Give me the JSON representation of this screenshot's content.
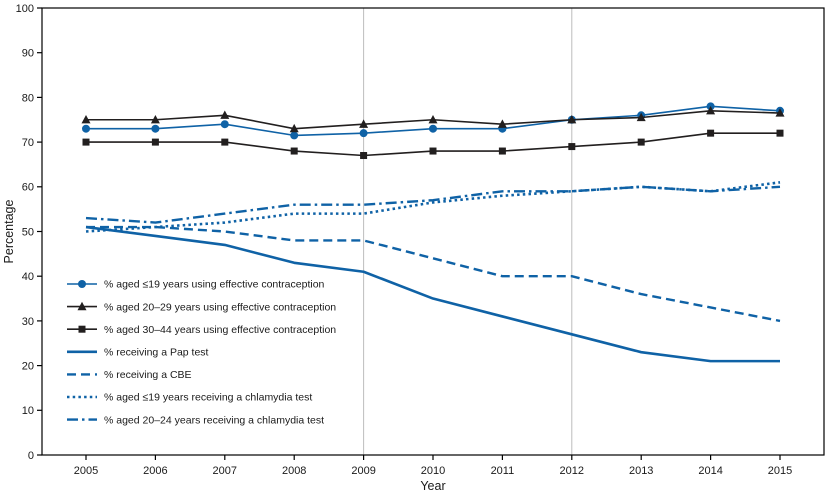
{
  "chart_data": {
    "type": "line",
    "title": "",
    "xlabel": "Year",
    "ylabel": "Percentage",
    "x": [
      2005,
      2006,
      2007,
      2008,
      2009,
      2010,
      2011,
      2012,
      2013,
      2014,
      2015
    ],
    "ylim": [
      0,
      100
    ],
    "ytick_step": 10,
    "grid": "off",
    "ref_lines_x": [
      2009,
      2012
    ],
    "legend_position": "inside lower-left",
    "colors": {
      "blue": "#0f62a6",
      "black": "#221f1f",
      "ref_line": "#bdbdbd",
      "axis": "#000000"
    },
    "series": [
      {
        "name": "% aged ≤19 years using effective contraception",
        "color_key": "blue",
        "line": "solid",
        "marker": "circle",
        "width": 1.6,
        "values": [
          73,
          73,
          74,
          71.5,
          72,
          73,
          73,
          75,
          76,
          78,
          77
        ]
      },
      {
        "name": "% aged 20–29  years using effective contraception",
        "color_key": "black",
        "line": "solid",
        "marker": "triangle",
        "width": 1.6,
        "values": [
          75,
          75,
          76,
          73,
          74,
          75,
          74,
          75,
          75.5,
          77,
          76.5
        ]
      },
      {
        "name": "% aged 30–44  years using effective contraception",
        "color_key": "black",
        "line": "solid",
        "marker": "square",
        "width": 1.6,
        "values": [
          70,
          70,
          70,
          68,
          67,
          68,
          68,
          69,
          70,
          72,
          72
        ]
      },
      {
        "name": "% receiving a Pap test",
        "color_key": "blue",
        "line": "solid",
        "marker": "none",
        "width": 2.6,
        "values": [
          51,
          49,
          47,
          43,
          41,
          35,
          31,
          27,
          23,
          21,
          21
        ]
      },
      {
        "name": "% receiving a CBE",
        "color_key": "blue",
        "line": "dashed",
        "marker": "none",
        "width": 2.4,
        "values": [
          51,
          51,
          50,
          48,
          48,
          44,
          40,
          40,
          36,
          33,
          30
        ]
      },
      {
        "name": "% aged ≤19 years receiving a chlamydia test",
        "color_key": "blue",
        "line": "dotted",
        "marker": "none",
        "width": 2.6,
        "values": [
          50,
          51,
          52,
          54,
          54,
          56.5,
          58,
          59,
          60,
          59,
          61
        ]
      },
      {
        "name": "% aged 20–24 years receiving a chlamydia test",
        "color_key": "blue",
        "line": "dashdot",
        "marker": "none",
        "width": 2.4,
        "values": [
          53,
          52,
          54,
          56,
          56,
          57,
          59,
          59,
          60,
          59,
          60
        ]
      }
    ]
  }
}
